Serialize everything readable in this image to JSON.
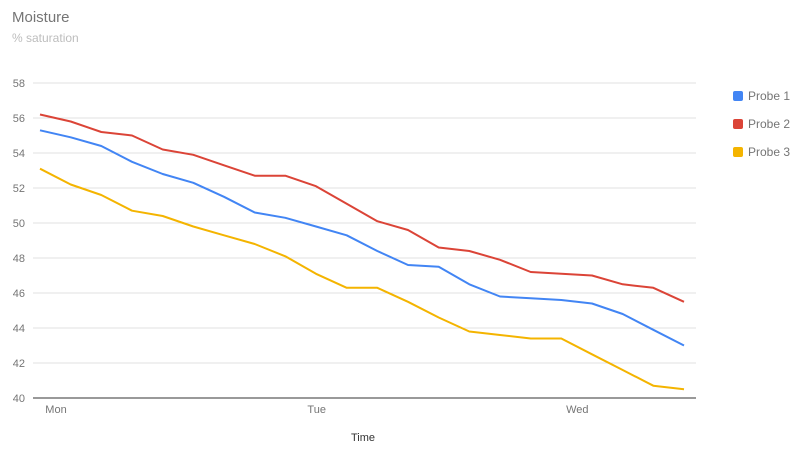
{
  "chart_data": {
    "type": "line",
    "title": "Moisture",
    "subtitle": "% saturation",
    "xlabel": "Time",
    "ylabel": "",
    "ylim": [
      40,
      58
    ],
    "yticks": [
      40,
      42,
      44,
      46,
      48,
      50,
      52,
      54,
      56,
      58
    ],
    "x_tick_labels": [
      {
        "label": "Mon",
        "at": 0
      },
      {
        "label": "Tue",
        "at": 8.5
      },
      {
        "label": "Wed",
        "at": 17
      }
    ],
    "x": [
      0,
      1,
      2,
      3,
      4,
      5,
      6,
      7,
      8,
      9,
      10,
      11,
      12,
      13,
      14,
      15,
      16,
      17,
      18,
      19,
      20,
      21
    ],
    "series": [
      {
        "name": "Probe 1",
        "color": "#4285f4",
        "values": [
          55.3,
          54.9,
          54.4,
          53.5,
          52.8,
          52.3,
          51.5,
          50.6,
          50.3,
          49.8,
          49.3,
          48.4,
          47.6,
          47.5,
          46.5,
          45.8,
          45.7,
          45.6,
          45.4,
          44.8,
          43.9,
          43.0
        ]
      },
      {
        "name": "Probe 2",
        "color": "#db4437",
        "values": [
          56.2,
          55.8,
          55.2,
          55.0,
          54.2,
          53.9,
          53.3,
          52.7,
          52.7,
          52.1,
          51.1,
          50.1,
          49.6,
          48.6,
          48.4,
          47.9,
          47.2,
          47.1,
          47.0,
          46.5,
          46.3,
          45.5
        ]
      },
      {
        "name": "Probe 3",
        "color": "#f4b400",
        "values": [
          53.1,
          52.2,
          51.6,
          50.7,
          50.4,
          49.8,
          49.3,
          48.8,
          48.1,
          47.1,
          46.3,
          46.3,
          45.5,
          44.6,
          43.8,
          43.6,
          43.4,
          43.4,
          42.5,
          41.6,
          40.7,
          40.5
        ]
      }
    ],
    "grid": true,
    "legend_position": "right"
  }
}
